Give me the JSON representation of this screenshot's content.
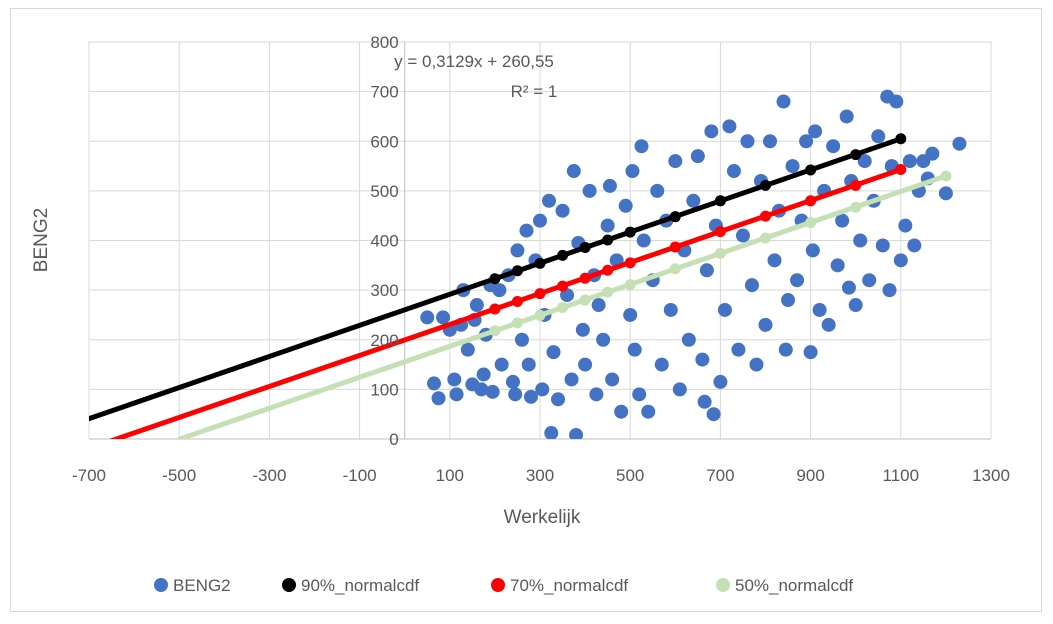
{
  "chart_data": {
    "type": "scatter",
    "xlabel": "Werkelijk",
    "ylabel": "BENG2",
    "xlim": [
      -700,
      1300
    ],
    "ylim": [
      0,
      800
    ],
    "x_ticks": [
      "-700",
      "-500",
      "-300",
      "-100",
      "100",
      "300",
      "500",
      "700",
      "900",
      "1100",
      "1300"
    ],
    "y_ticks": [
      "0",
      "100",
      "200",
      "300",
      "400",
      "500",
      "600",
      "700",
      "800"
    ],
    "grid": "vertical and horizontal major gridlines",
    "legend_position": "bottom",
    "annotation": {
      "equation": "y = 0,3129x + 260,55",
      "r_squared": "R² = 1"
    },
    "scatter_series": {
      "name": "BENG2",
      "color": "#4472c4",
      "points": [
        [
          50,
          245
        ],
        [
          65,
          112
        ],
        [
          75,
          82
        ],
        [
          85,
          245
        ],
        [
          100,
          220
        ],
        [
          110,
          120
        ],
        [
          115,
          90
        ],
        [
          125,
          230
        ],
        [
          130,
          300
        ],
        [
          140,
          180
        ],
        [
          150,
          110
        ],
        [
          155,
          240
        ],
        [
          160,
          270
        ],
        [
          170,
          100
        ],
        [
          175,
          130
        ],
        [
          180,
          210
        ],
        [
          190,
          310
        ],
        [
          195,
          95
        ],
        [
          210,
          300
        ],
        [
          215,
          150
        ],
        [
          230,
          330
        ],
        [
          240,
          115
        ],
        [
          245,
          90
        ],
        [
          250,
          380
        ],
        [
          260,
          200
        ],
        [
          270,
          420
        ],
        [
          275,
          150
        ],
        [
          280,
          85
        ],
        [
          290,
          360
        ],
        [
          300,
          440
        ],
        [
          305,
          100
        ],
        [
          310,
          250
        ],
        [
          320,
          480
        ],
        [
          325,
          12
        ],
        [
          330,
          175
        ],
        [
          340,
          80
        ],
        [
          350,
          460
        ],
        [
          360,
          290
        ],
        [
          370,
          120
        ],
        [
          375,
          540
        ],
        [
          380,
          8
        ],
        [
          385,
          395
        ],
        [
          395,
          220
        ],
        [
          400,
          150
        ],
        [
          410,
          500
        ],
        [
          420,
          330
        ],
        [
          425,
          90
        ],
        [
          430,
          270
        ],
        [
          440,
          200
        ],
        [
          450,
          430
        ],
        [
          455,
          510
        ],
        [
          460,
          120
        ],
        [
          470,
          360
        ],
        [
          480,
          55
        ],
        [
          490,
          470
        ],
        [
          500,
          250
        ],
        [
          505,
          540
        ],
        [
          510,
          180
        ],
        [
          520,
          90
        ],
        [
          525,
          590
        ],
        [
          530,
          400
        ],
        [
          540,
          55
        ],
        [
          550,
          320
        ],
        [
          560,
          500
        ],
        [
          570,
          150
        ],
        [
          580,
          440
        ],
        [
          590,
          260
        ],
        [
          600,
          560
        ],
        [
          610,
          100
        ],
        [
          620,
          380
        ],
        [
          630,
          200
        ],
        [
          640,
          480
        ],
        [
          650,
          570
        ],
        [
          660,
          160
        ],
        [
          665,
          75
        ],
        [
          670,
          340
        ],
        [
          680,
          620
        ],
        [
          685,
          50
        ],
        [
          690,
          430
        ],
        [
          700,
          115
        ],
        [
          710,
          260
        ],
        [
          720,
          630
        ],
        [
          730,
          540
        ],
        [
          740,
          180
        ],
        [
          750,
          410
        ],
        [
          760,
          600
        ],
        [
          770,
          310
        ],
        [
          780,
          150
        ],
        [
          790,
          520
        ],
        [
          800,
          230
        ],
        [
          810,
          600
        ],
        [
          820,
          360
        ],
        [
          830,
          460
        ],
        [
          840,
          680
        ],
        [
          845,
          180
        ],
        [
          850,
          280
        ],
        [
          860,
          550
        ],
        [
          870,
          320
        ],
        [
          880,
          440
        ],
        [
          890,
          600
        ],
        [
          900,
          175
        ],
        [
          905,
          380
        ],
        [
          910,
          620
        ],
        [
          920,
          260
        ],
        [
          930,
          500
        ],
        [
          940,
          230
        ],
        [
          950,
          590
        ],
        [
          960,
          350
        ],
        [
          970,
          440
        ],
        [
          980,
          650
        ],
        [
          985,
          305
        ],
        [
          990,
          520
        ],
        [
          1000,
          270
        ],
        [
          1010,
          400
        ],
        [
          1020,
          560
        ],
        [
          1030,
          320
        ],
        [
          1040,
          480
        ],
        [
          1050,
          610
        ],
        [
          1060,
          390
        ],
        [
          1070,
          690
        ],
        [
          1075,
          300
        ],
        [
          1080,
          550
        ],
        [
          1090,
          680
        ],
        [
          1100,
          360
        ],
        [
          1110,
          430
        ],
        [
          1120,
          560
        ],
        [
          1130,
          390
        ],
        [
          1140,
          500
        ],
        [
          1150,
          560
        ],
        [
          1160,
          525
        ],
        [
          1170,
          575
        ],
        [
          1200,
          495
        ],
        [
          1230,
          595
        ]
      ]
    },
    "line_series": [
      {
        "name": "90%_normalcdf",
        "color": "#000000",
        "line_x_start": -700,
        "x": [
          200,
          250,
          300,
          350,
          400,
          450,
          500,
          600,
          700,
          800,
          900,
          1000,
          1100
        ],
        "y": [
          323,
          339,
          354,
          370,
          386,
          401,
          417,
          448,
          480,
          511,
          542,
          573,
          605
        ]
      },
      {
        "name": "70%_normalcdf",
        "color": "#ff0000",
        "line_x_start": -650,
        "x": [
          200,
          250,
          300,
          350,
          400,
          450,
          500,
          600,
          700,
          800,
          900,
          1000,
          1100
        ],
        "y": [
          262,
          277,
          293,
          308,
          324,
          340,
          355,
          387,
          418,
          449,
          480,
          511,
          543
        ]
      },
      {
        "name": "50%_normalcdf",
        "color": "#c5e0b4",
        "line_x_start": -500,
        "x": [
          200,
          250,
          300,
          350,
          400,
          450,
          500,
          600,
          700,
          800,
          900,
          1000,
          1200
        ],
        "y": [
          218,
          234,
          249,
          265,
          280,
          296,
          311,
          343,
          374,
          405,
          436,
          467,
          530
        ]
      }
    ]
  }
}
